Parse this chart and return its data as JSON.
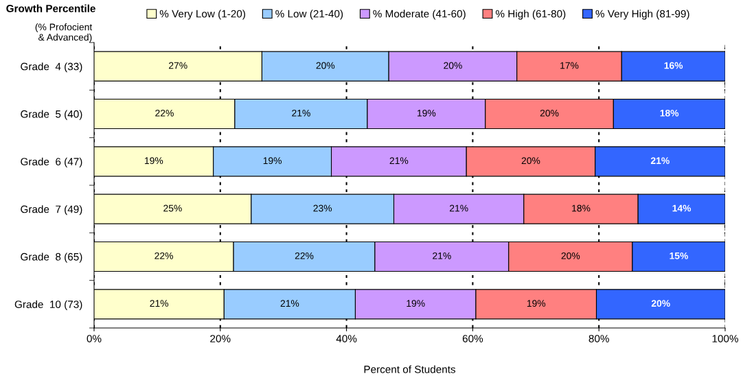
{
  "chart_data": {
    "type": "bar",
    "orientation": "horizontal",
    "stacked": true,
    "legend_title": "Growth Percentile",
    "legend": "top",
    "xlabel": "Percent of Students",
    "ylabel": "(% Profocient\n& Advanced)",
    "categories": [
      "Grade  4 (33)",
      "Grade  5 (40)",
      "Grade  6 (47)",
      "Grade  7 (49)",
      "Grade  8 (65)",
      "Grade  10 (73)"
    ],
    "xlim": [
      0,
      100
    ],
    "xticks": [
      {
        "value": 0,
        "label": "0%"
      },
      {
        "value": 20,
        "label": "20%"
      },
      {
        "value": 40,
        "label": "40%"
      },
      {
        "value": 60,
        "label": "60%"
      },
      {
        "value": 80,
        "label": "80%"
      },
      {
        "value": 100,
        "label": "100%"
      }
    ],
    "grid": "x",
    "series": [
      {
        "name": "% Very Low (1-20)",
        "color": "#ffffcc",
        "values": [
          26.6,
          22.3,
          18.9,
          24.9,
          22.1,
          20.6
        ],
        "value_labels": [
          "27%",
          "22%",
          "19%",
          "25%",
          "22%",
          "21%"
        ]
      },
      {
        "name": "% Low (21-40)",
        "color": "#99ccff",
        "values": [
          20.1,
          21.0,
          18.7,
          22.6,
          22.4,
          20.8
        ],
        "value_labels": [
          "20%",
          "21%",
          "19%",
          "23%",
          "22%",
          "21%"
        ]
      },
      {
        "name": "% Moderate (41-60)",
        "color": "#cc99ff",
        "values": [
          20.3,
          18.7,
          21.4,
          20.6,
          21.2,
          19.1
        ],
        "value_labels": [
          "20%",
          "19%",
          "21%",
          "21%",
          "21%",
          "19%"
        ]
      },
      {
        "name": "% High (61-80)",
        "color": "#ff8080",
        "values": [
          16.6,
          20.3,
          20.4,
          18.1,
          19.6,
          19.1
        ],
        "value_labels": [
          "17%",
          "20%",
          "20%",
          "18%",
          "20%",
          "19%"
        ]
      },
      {
        "name": "% Very High (81-99)",
        "color": "#3366ff",
        "values": [
          16.4,
          17.7,
          20.6,
          13.8,
          14.7,
          20.4
        ],
        "value_labels": [
          "16%",
          "18%",
          "21%",
          "14%",
          "15%",
          "20%"
        ]
      }
    ]
  }
}
